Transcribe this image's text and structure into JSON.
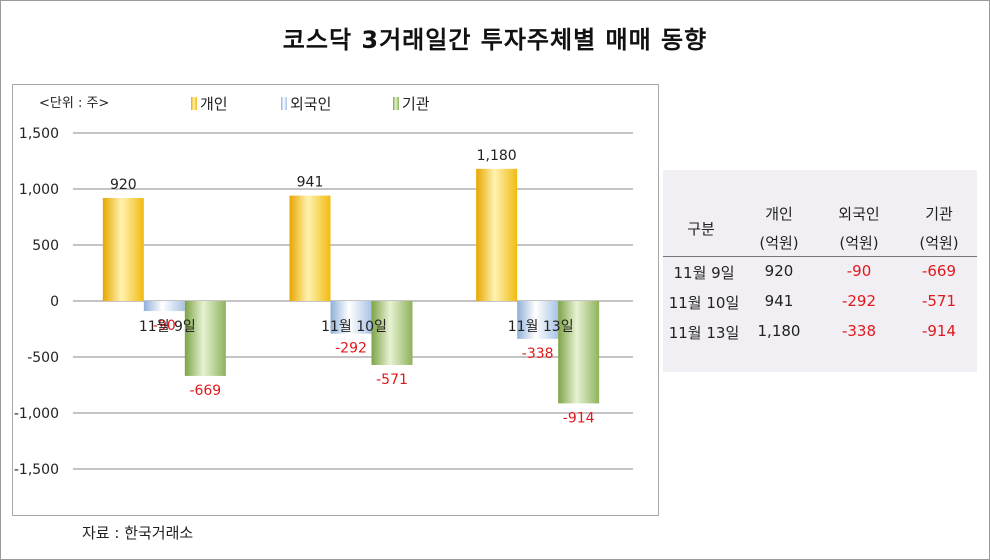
{
  "title": "코스닥 3거래일간 투자주체별 매매 동향",
  "unit_label": "<단위 : 주>",
  "source": "자료 : 한국거래소",
  "colors": {
    "individual": "#f2bd1a",
    "foreign": "#a8c4e6",
    "institution": "#8caf5a",
    "negative_label": "#e0181c"
  },
  "chart_data": {
    "type": "bar",
    "categories": [
      "11월 9일",
      "11월 10일",
      "11월 13일"
    ],
    "series": [
      {
        "name": "개인",
        "values": [
          920,
          941,
          1180
        ],
        "labels": [
          "920",
          "941",
          "1,180"
        ]
      },
      {
        "name": "외국인",
        "values": [
          -90,
          -292,
          -338
        ],
        "labels": [
          "-90",
          "-292",
          "-338"
        ]
      },
      {
        "name": "기관",
        "values": [
          -669,
          -571,
          -914
        ],
        "labels": [
          "-669",
          "-571",
          "-914"
        ]
      }
    ],
    "ylim": [
      -1500,
      1500
    ],
    "yticks": [
      1500,
      1000,
      500,
      0,
      -500,
      -1000,
      -1500
    ],
    "ytick_labels": [
      "1,500",
      "1,000",
      "500",
      "0",
      "-500",
      "-1,000",
      "-1,500"
    ],
    "grid": true,
    "legend": "top"
  },
  "table": {
    "headers": [
      {
        "top": "구분",
        "bottom": ""
      },
      {
        "top": "개인",
        "bottom": "(억원)"
      },
      {
        "top": "외국인",
        "bottom": "(억원)"
      },
      {
        "top": "기관",
        "bottom": "(억원)"
      }
    ],
    "rows": [
      [
        "11월  9일",
        "920",
        "-90",
        "-669"
      ],
      [
        "11월  10일",
        "941",
        "-292",
        "-571"
      ],
      [
        "11월  13일",
        "1,180",
        "-338",
        "-914"
      ]
    ]
  }
}
